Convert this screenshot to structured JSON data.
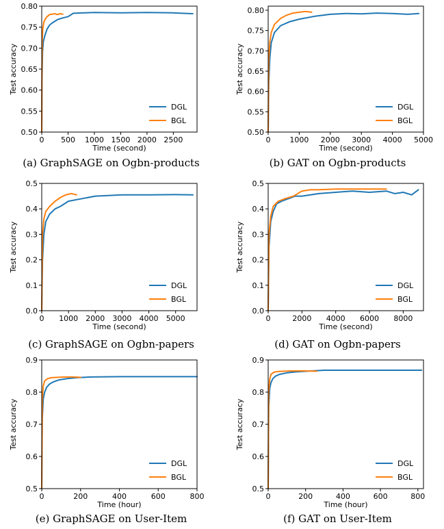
{
  "colors": {
    "DGL": "#1f77b4",
    "BGL": "#ff7f0e"
  },
  "chart_data": [
    {
      "type": "line",
      "caption": "(a) GraphSAGE on Ogbn-products",
      "xlabel": "Time (second)",
      "ylabel": "Test accuracy",
      "xlim": [
        0,
        2950
      ],
      "ylim": [
        0.5,
        0.8
      ],
      "xticks": [
        0,
        500,
        1000,
        1500,
        2000,
        2500
      ],
      "yticks": [
        0.5,
        0.55,
        0.6,
        0.65,
        0.7,
        0.75,
        0.8
      ],
      "ydecimals": 2,
      "legend": "lower-right",
      "series": [
        {
          "name": "DGL",
          "x": [
            0,
            5,
            15,
            30,
            60,
            100,
            150,
            200,
            300,
            400,
            500,
            600,
            800,
            1000,
            1500,
            2000,
            2500,
            2870
          ],
          "y": [
            0.5,
            0.62,
            0.69,
            0.715,
            0.73,
            0.745,
            0.755,
            0.76,
            0.768,
            0.772,
            0.775,
            0.783,
            0.784,
            0.785,
            0.784,
            0.785,
            0.784,
            0.782
          ]
        },
        {
          "name": "BGL",
          "x": [
            0,
            5,
            10,
            20,
            40,
            70,
            100,
            150,
            200,
            250,
            300,
            350,
            400
          ],
          "y": [
            0.5,
            0.66,
            0.72,
            0.745,
            0.762,
            0.77,
            0.775,
            0.78,
            0.781,
            0.782,
            0.78,
            0.782,
            0.781
          ]
        }
      ]
    },
    {
      "type": "line",
      "caption": "(b) GAT on Ogbn-products",
      "xlabel": "Time (second)",
      "ylabel": "Test accuracy",
      "xlim": [
        0,
        5000
      ],
      "ylim": [
        0.5,
        0.81
      ],
      "xticks": [
        0,
        1000,
        2000,
        3000,
        4000,
        5000
      ],
      "yticks": [
        0.5,
        0.55,
        0.6,
        0.65,
        0.7,
        0.75,
        0.8
      ],
      "ydecimals": 2,
      "legend": "lower-right",
      "series": [
        {
          "name": "DGL",
          "x": [
            0,
            20,
            50,
            100,
            200,
            400,
            700,
            1000,
            1500,
            2000,
            2500,
            3000,
            3500,
            4000,
            4500,
            4850
          ],
          "y": [
            0.5,
            0.62,
            0.68,
            0.72,
            0.745,
            0.762,
            0.772,
            0.778,
            0.785,
            0.79,
            0.792,
            0.791,
            0.793,
            0.792,
            0.79,
            0.792
          ]
        },
        {
          "name": "BGL",
          "x": [
            0,
            20,
            50,
            100,
            200,
            400,
            600,
            800,
            1000,
            1200,
            1400
          ],
          "y": [
            0.5,
            0.68,
            0.72,
            0.745,
            0.765,
            0.78,
            0.788,
            0.793,
            0.795,
            0.797,
            0.795
          ]
        }
      ]
    },
    {
      "type": "line",
      "caption": "(c) GraphSAGE on Ogbn-papers",
      "xlabel": "Time (second)",
      "ylabel": "Test accuracy",
      "xlim": [
        0,
        5800
      ],
      "ylim": [
        0.0,
        0.5
      ],
      "xticks": [
        0,
        1000,
        2000,
        3000,
        4000,
        5000
      ],
      "yticks": [
        0.0,
        0.1,
        0.2,
        0.3,
        0.4,
        0.5
      ],
      "ydecimals": 1,
      "legend": "lower-right",
      "series": [
        {
          "name": "DGL",
          "x": [
            0,
            30,
            80,
            150,
            300,
            500,
            700,
            1000,
            1500,
            2000,
            3000,
            4000,
            5000,
            5650
          ],
          "y": [
            0.0,
            0.2,
            0.3,
            0.35,
            0.38,
            0.4,
            0.41,
            0.43,
            0.44,
            0.45,
            0.455,
            0.455,
            0.456,
            0.455
          ]
        },
        {
          "name": "BGL",
          "x": [
            0,
            30,
            80,
            150,
            300,
            500,
            700,
            900,
            1100,
            1300
          ],
          "y": [
            0.0,
            0.3,
            0.36,
            0.39,
            0.41,
            0.43,
            0.445,
            0.455,
            0.46,
            0.455
          ]
        }
      ]
    },
    {
      "type": "line",
      "caption": "(d) GAT on Ogbn-papers",
      "xlabel": "Time (second)",
      "ylabel": "Test accuracy",
      "xlim": [
        0,
        9200
      ],
      "ylim": [
        0.0,
        0.5
      ],
      "xticks": [
        0,
        2000,
        4000,
        6000,
        8000
      ],
      "yticks": [
        0.0,
        0.1,
        0.2,
        0.3,
        0.4,
        0.5
      ],
      "ydecimals": 1,
      "legend": "lower-right",
      "series": [
        {
          "name": "DGL",
          "x": [
            0,
            50,
            150,
            300,
            500,
            800,
            1200,
            1600,
            2000,
            3000,
            4000,
            5000,
            6000,
            7000,
            7500,
            8000,
            8500,
            8900
          ],
          "y": [
            0.0,
            0.25,
            0.35,
            0.39,
            0.42,
            0.43,
            0.44,
            0.45,
            0.45,
            0.46,
            0.465,
            0.47,
            0.465,
            0.47,
            0.46,
            0.465,
            0.455,
            0.475
          ]
        },
        {
          "name": "BGL",
          "x": [
            0,
            50,
            150,
            300,
            600,
            1000,
            1500,
            2000,
            2500,
            3000,
            4000,
            5000,
            6000,
            7000
          ],
          "y": [
            0.0,
            0.3,
            0.37,
            0.41,
            0.43,
            0.44,
            0.45,
            0.47,
            0.475,
            0.475,
            0.478,
            0.478,
            0.478,
            0.478
          ]
        }
      ]
    },
    {
      "type": "line",
      "caption": "(e) GraphSAGE on User-Item",
      "xlabel": "Time (hour)",
      "ylabel": "Test accuracy",
      "xlim": [
        0,
        800
      ],
      "ylim": [
        0.5,
        0.9
      ],
      "xticks": [
        0,
        200,
        400,
        600,
        800
      ],
      "yticks": [
        0.5,
        0.6,
        0.7,
        0.8,
        0.9
      ],
      "ydecimals": 1,
      "legend": "lower-right",
      "series": [
        {
          "name": "DGL",
          "x": [
            0,
            3,
            8,
            15,
            25,
            40,
            60,
            90,
            130,
            180,
            250,
            400,
            600,
            800
          ],
          "y": [
            0.5,
            0.72,
            0.78,
            0.8,
            0.815,
            0.825,
            0.832,
            0.838,
            0.842,
            0.845,
            0.847,
            0.848,
            0.848,
            0.848
          ]
        },
        {
          "name": "BGL",
          "x": [
            0,
            3,
            8,
            15,
            30,
            50,
            80,
            120,
            160,
            200
          ],
          "y": [
            0.5,
            0.78,
            0.82,
            0.835,
            0.842,
            0.845,
            0.846,
            0.847,
            0.847,
            0.846
          ]
        }
      ]
    },
    {
      "type": "line",
      "caption": "(f) GAT on User-Item",
      "xlabel": "Time (hour)",
      "ylabel": "Test accuracy",
      "xlim": [
        0,
        830
      ],
      "ylim": [
        0.5,
        0.9
      ],
      "xticks": [
        0,
        200,
        400,
        600,
        800
      ],
      "yticks": [
        0.5,
        0.6,
        0.7,
        0.8,
        0.9
      ],
      "ydecimals": 1,
      "legend": "lower-right",
      "series": [
        {
          "name": "DGL",
          "x": [
            0,
            3,
            8,
            15,
            25,
            40,
            60,
            100,
            150,
            200,
            300,
            400,
            600,
            820
          ],
          "y": [
            0.5,
            0.75,
            0.81,
            0.83,
            0.842,
            0.85,
            0.855,
            0.86,
            0.863,
            0.865,
            0.868,
            0.868,
            0.868,
            0.868
          ]
        },
        {
          "name": "BGL",
          "x": [
            0,
            3,
            8,
            15,
            30,
            50,
            80,
            120,
            160,
            200,
            260
          ],
          "y": [
            0.5,
            0.8,
            0.84,
            0.855,
            0.862,
            0.864,
            0.865,
            0.866,
            0.866,
            0.866,
            0.865
          ]
        }
      ]
    }
  ]
}
